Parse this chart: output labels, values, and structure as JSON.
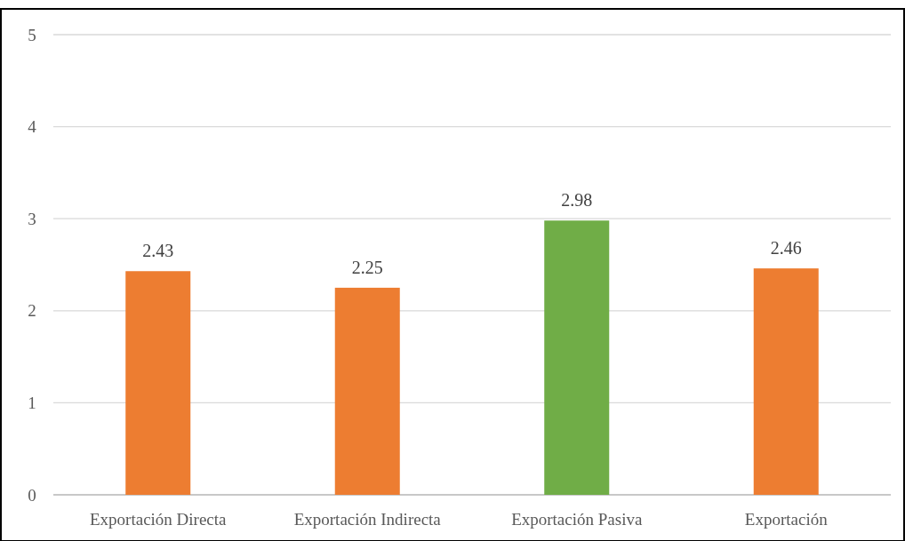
{
  "chart_data": {
    "type": "bar",
    "categories": [
      "Exportación Directa",
      "Exportación Indirecta",
      "Exportación Pasiva",
      "Exportación"
    ],
    "values": [
      2.43,
      2.25,
      2.98,
      2.46
    ],
    "colors": [
      "#ed7d31",
      "#ed7d31",
      "#70ad47",
      "#ed7d31"
    ],
    "ylim": [
      0,
      5
    ],
    "yticks": [
      0,
      1,
      2,
      3,
      4,
      5
    ],
    "grid": "y",
    "data_labels": true
  }
}
